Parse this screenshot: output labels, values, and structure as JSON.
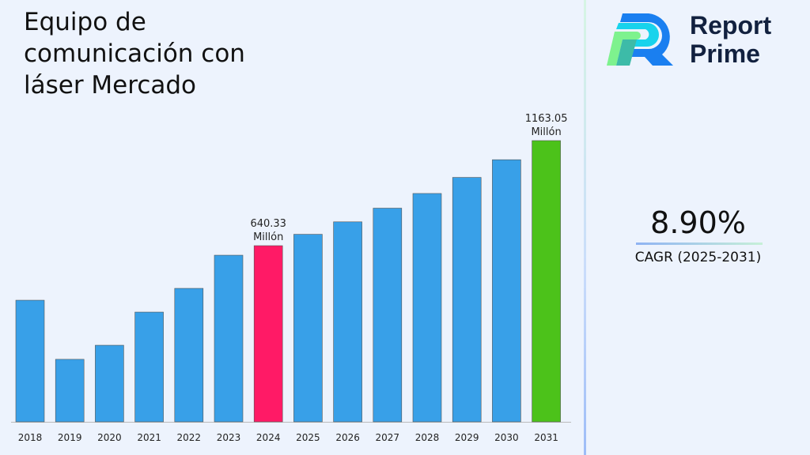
{
  "chart_data": {
    "type": "bar",
    "title": "Equipo de comunicación con láser Mercado",
    "categories": [
      "2018",
      "2019",
      "2020",
      "2021",
      "2022",
      "2023",
      "2024",
      "2025",
      "2026",
      "2027",
      "2028",
      "2029",
      "2030",
      "2031"
    ],
    "values": [
      369,
      75,
      145,
      310,
      428,
      593,
      640.33,
      697,
      759,
      827,
      900,
      980,
      1068,
      1163.05
    ],
    "unit": "Millón",
    "ylim": [
      -236,
      1163.05
    ],
    "grid": false,
    "colors": {
      "default": "#38a0e8",
      "highlight_2024": "#ff1a66",
      "highlight_2031": "#4cc21a"
    },
    "annotations": [
      {
        "category": "2024",
        "value": "640.33",
        "unit": "Millón"
      },
      {
        "category": "2031",
        "value": "1163.05",
        "unit": "Millón"
      }
    ]
  },
  "brand": {
    "line1": "Report",
    "line2": "Prime"
  },
  "cagr": {
    "value": "8.90%",
    "label": "CAGR (2025-2031)"
  }
}
